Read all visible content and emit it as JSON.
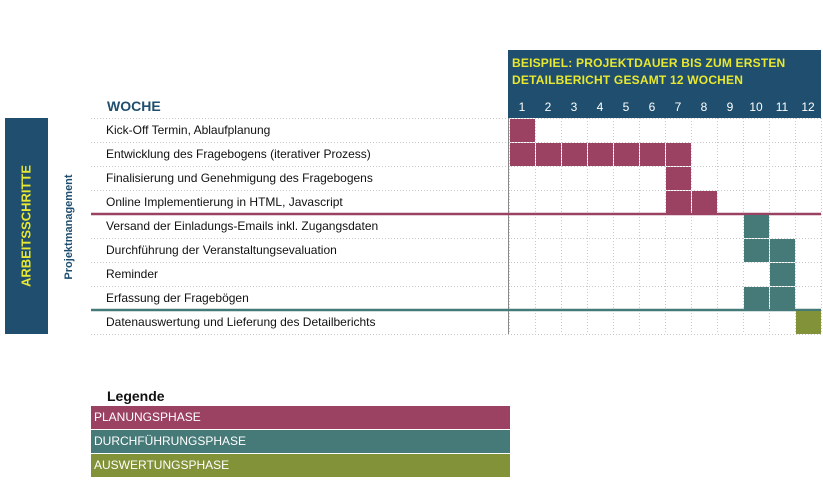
{
  "header": {
    "title": "BEISPIEL: PROJEKTDAUER BIS ZUM ERSTEN DETAILBERICHT GESAMT 12 WOCHEN",
    "woche_label": "WOCHE"
  },
  "side": {
    "main_label": "ARBEITSSCHRITTE",
    "sub_label": "Projektmanagement"
  },
  "legend": {
    "title": "Legende",
    "items": [
      {
        "label": "PLANUNGSPHASE",
        "color": "#9b4262"
      },
      {
        "label": "DURCHFÜHRUNGSPHASE",
        "color": "#467a78"
      },
      {
        "label": "AUSWERTUNGSPHASE",
        "color": "#829238"
      }
    ]
  },
  "chart_data": {
    "type": "gantt",
    "weeks": [
      "1",
      "2",
      "3",
      "4",
      "5",
      "6",
      "7",
      "8",
      "9",
      "10",
      "11",
      "12"
    ],
    "tasks": [
      {
        "name": "Kick-Off Termin, Ablaufplanung",
        "start": 1,
        "end": 1,
        "phase": 0
      },
      {
        "name": "Entwicklung des Fragebogens (iterativer Prozess)",
        "start": 1,
        "end": 7,
        "phase": 0
      },
      {
        "name": "Finalisierung und Genehmigung des Fragebogens",
        "start": 7,
        "end": 7,
        "phase": 0
      },
      {
        "name": "Online Implementierung in HTML, Javascript",
        "start": 7,
        "end": 8,
        "phase": 0
      },
      {
        "name": "Versand der Einladungs-Emails inkl. Zugangsdaten",
        "start": 10,
        "end": 10,
        "phase": 1
      },
      {
        "name": "Durchführung der Veranstaltungsevaluation",
        "start": 10,
        "end": 11,
        "phase": 1
      },
      {
        "name": "Reminder",
        "start": 11,
        "end": 11,
        "phase": 1
      },
      {
        "name": "Erfassung der Fragebögen",
        "start": 10,
        "end": 11,
        "phase": 1
      },
      {
        "name": "Datenauswertung und Lieferung des Detailberichts",
        "start": 12,
        "end": 12,
        "phase": 2
      }
    ],
    "phase_separators_after": [
      3,
      7
    ]
  }
}
